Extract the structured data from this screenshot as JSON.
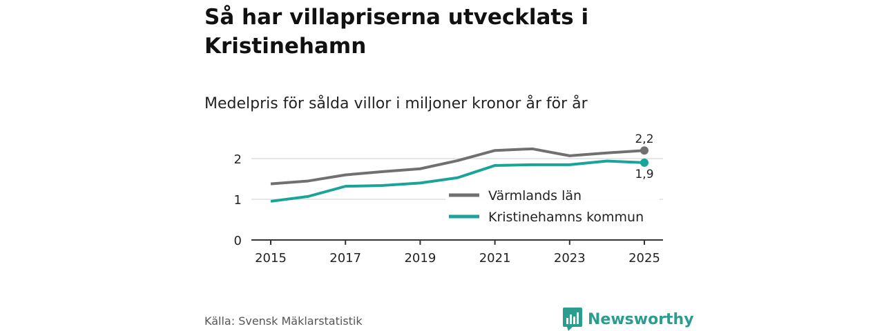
{
  "title": "Så har villapriserna utvecklats i Kristinehamn",
  "subtitle": "Medelpris för sålda villor i miljoner kronor år för år",
  "source": "Källa: Svensk Mäklarstatistik",
  "brand": "Newsworthy",
  "colors": {
    "grey": "#707070",
    "teal": "#1aa398",
    "grid": "#dddddd",
    "axis": "#333333",
    "brand": "#2a9d8f"
  },
  "chart_data": {
    "type": "line",
    "x": [
      2015,
      2016,
      2017,
      2018,
      2019,
      2020,
      2021,
      2022,
      2023,
      2024,
      2025
    ],
    "xticks": [
      "2015",
      "2017",
      "2019",
      "2021",
      "2023",
      "2025"
    ],
    "yticks": [
      "0",
      "1",
      "2"
    ],
    "ylim": [
      0,
      2.3
    ],
    "grid": true,
    "legend": "bottom-right",
    "series": [
      {
        "name": "Värmlands län",
        "color": "#707070",
        "values": [
          1.38,
          1.45,
          1.6,
          1.68,
          1.75,
          1.95,
          2.2,
          2.24,
          2.07,
          2.14,
          2.2
        ],
        "end_label": "2,2"
      },
      {
        "name": "Kristinehamns kommun",
        "color": "#1aa398",
        "values": [
          0.95,
          1.07,
          1.32,
          1.34,
          1.4,
          1.53,
          1.83,
          1.85,
          1.85,
          1.94,
          1.9
        ],
        "end_label": "1,9"
      }
    ]
  }
}
